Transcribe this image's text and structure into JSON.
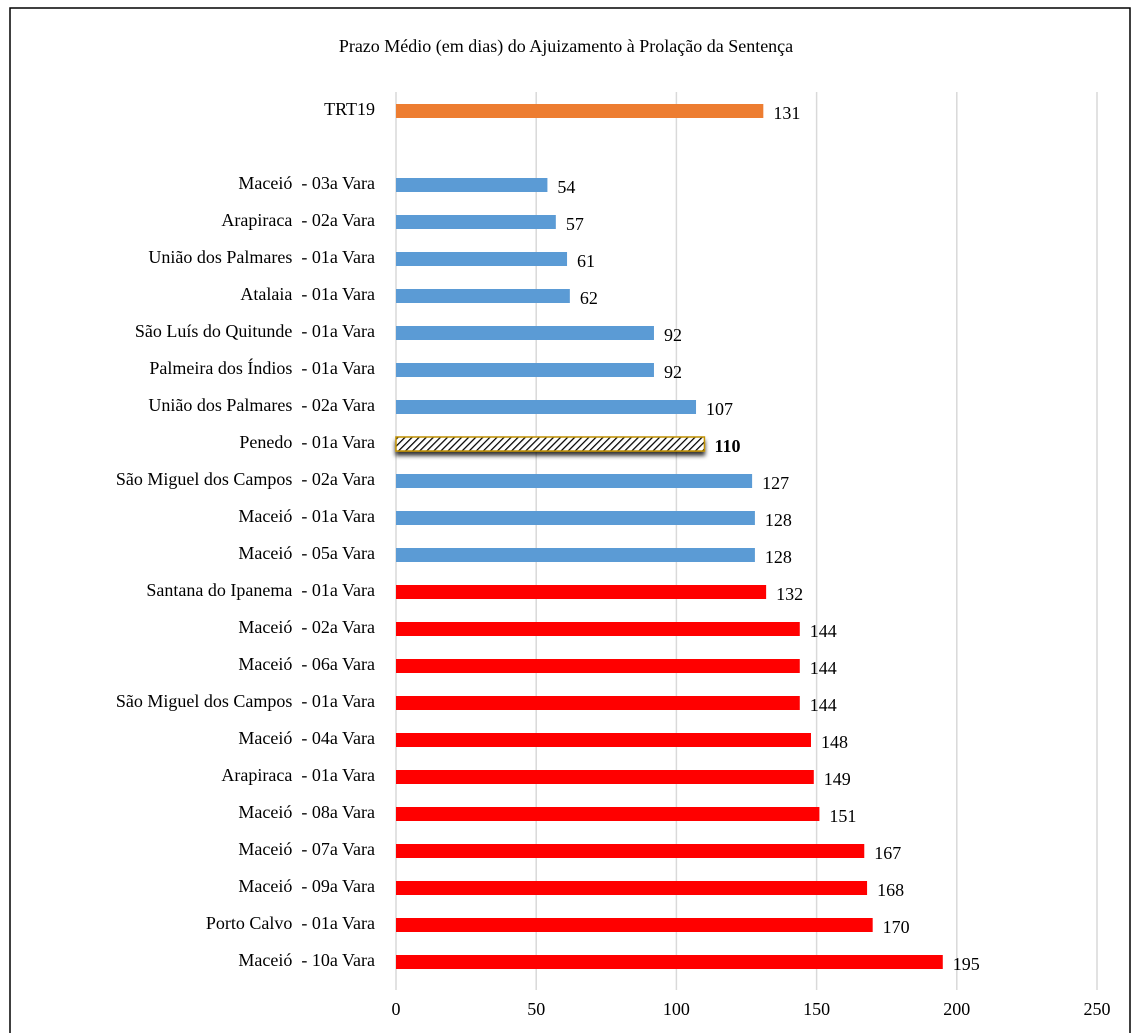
{
  "chart_data": {
    "type": "bar",
    "orientation": "horizontal",
    "title": "Prazo Médio (em dias) do Ajuizamento à Prolação da Sentença",
    "categories": [
      "TRT19",
      null,
      "Maceió  - 03a Vara",
      "Arapiraca  - 02a Vara",
      "União dos Palmares  - 01a Vara",
      "Atalaia  - 01a Vara",
      "São Luís do Quitunde  - 01a Vara",
      "Palmeira dos Índios  - 01a Vara",
      "União dos Palmares  - 02a Vara",
      "Penedo  - 01a Vara",
      "São Miguel dos Campos  - 02a Vara",
      "Maceió  - 01a Vara",
      "Maceió  - 05a Vara",
      "Santana do Ipanema  - 01a Vara",
      "Maceió  - 02a Vara",
      "Maceió  - 06a Vara",
      "São Miguel dos Campos  - 01a Vara",
      "Maceió  - 04a Vara",
      "Arapiraca  - 01a Vara",
      "Maceió  - 08a Vara",
      "Maceió  - 07a Vara",
      "Maceió  - 09a Vara",
      "Porto Calvo  - 01a Vara",
      "Maceió  - 10a Vara"
    ],
    "values": [
      131,
      null,
      54,
      57,
      61,
      62,
      92,
      92,
      107,
      110,
      127,
      128,
      128,
      132,
      144,
      144,
      144,
      148,
      149,
      151,
      167,
      168,
      170,
      195
    ],
    "colors": [
      "#ed7d31",
      null,
      "#5b9bd5",
      "#5b9bd5",
      "#5b9bd5",
      "#5b9bd5",
      "#5b9bd5",
      "#5b9bd5",
      "#5b9bd5",
      "#c09000",
      "#5b9bd5",
      "#5b9bd5",
      "#5b9bd5",
      "#ff0000",
      "#ff0000",
      "#ff0000",
      "#ff0000",
      "#ff0000",
      "#ff0000",
      "#ff0000",
      "#ff0000",
      "#ff0000",
      "#ff0000",
      "#ff0000"
    ],
    "patterns": [
      null,
      null,
      null,
      null,
      null,
      null,
      null,
      null,
      null,
      "hatch",
      null,
      null,
      null,
      null,
      null,
      null,
      null,
      null,
      null,
      null,
      null,
      null,
      null,
      null
    ],
    "xlim": [
      0,
      250
    ],
    "xticks": [
      0,
      50,
      100,
      150,
      200,
      250
    ],
    "grid": true
  }
}
